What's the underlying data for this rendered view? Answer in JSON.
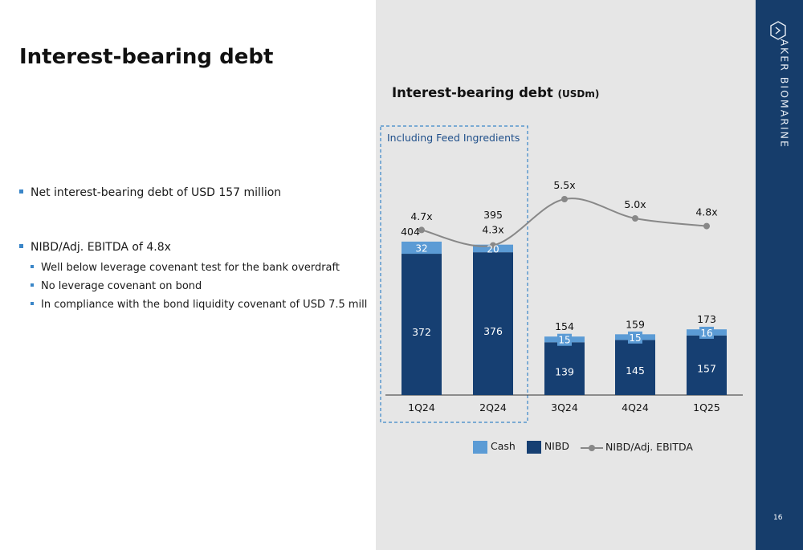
{
  "slide": {
    "title": "Interest-bearing debt",
    "page_number": "16",
    "brand_name": "AKER BIOMARINE",
    "bullets": [
      {
        "text": "Net interest-bearing debt of USD 157 million"
      },
      {
        "text": "NIBD/Adj. EBITDA of 4.8x",
        "sub": [
          "Well below leverage covenant test for the bank overdraft",
          "No leverage covenant on bond",
          "In compliance with the bond liquidity covenant of USD 7.5 mill"
        ]
      }
    ]
  },
  "colors": {
    "nibd": "#163f72",
    "cash": "#5b9bd5",
    "line": "#888888",
    "brand_bg": "#163d6b",
    "panel_bg": "#e6e6e6",
    "highlight_box": "#3a86c8"
  },
  "chart_data": {
    "type": "bar",
    "stacked": true,
    "title": "Interest-bearing debt",
    "unit": "(USDm)",
    "categories": [
      "1Q24",
      "2Q24",
      "3Q24",
      "4Q24",
      "1Q25"
    ],
    "series": [
      {
        "name": "NIBD",
        "values": [
          372,
          376,
          139,
          145,
          157
        ]
      },
      {
        "name": "Cash",
        "values": [
          32,
          20,
          15,
          15,
          16
        ]
      }
    ],
    "totals": [
      404,
      395,
      154,
      159,
      173
    ],
    "ratio_series": {
      "name": "NIBD/Adj. EBITDA",
      "values": [
        4.7,
        4.3,
        5.5,
        5.0,
        4.8
      ],
      "labels": [
        "4.7x",
        "4.3x",
        "5.5x",
        "5.0x",
        "4.8x"
      ]
    },
    "highlight_label": "Including Feed Ingredients",
    "highlight_categories": [
      "1Q24",
      "2Q24"
    ],
    "legend": [
      "Cash",
      "NIBD",
      "NIBD/Adj. EBITDA"
    ],
    "legend_position": "bottom",
    "grid": false
  }
}
